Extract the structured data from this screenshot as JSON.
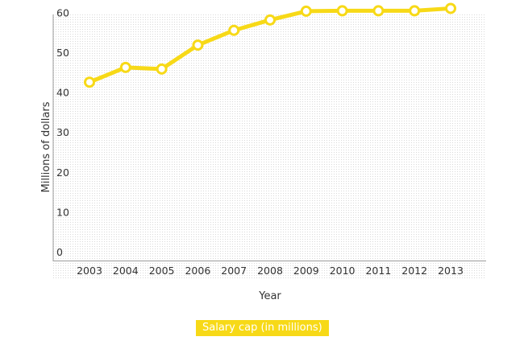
{
  "chart_data": {
    "type": "line",
    "x": [
      "2003",
      "2004",
      "2005",
      "2006",
      "2007",
      "2008",
      "2009",
      "2010",
      "2011",
      "2012",
      "2013"
    ],
    "series": [
      {
        "name": "Salary cap (in millions)",
        "values": [
          42.5,
          46.2,
          45.8,
          51.8,
          55.5,
          58.1,
          60.3,
          60.4,
          60.4,
          60.4,
          61
        ]
      }
    ],
    "xlabel": "Year",
    "ylabel": "Millions of dollars",
    "yticks": [
      "0",
      "10",
      "20",
      "30",
      "40",
      "50",
      "60"
    ],
    "ylim": [
      0,
      62
    ],
    "grid": false,
    "legend_position": "bottom-center"
  },
  "colors": {
    "series": "#f7d917",
    "background_dots": "#dedede",
    "axis": "#999999"
  }
}
